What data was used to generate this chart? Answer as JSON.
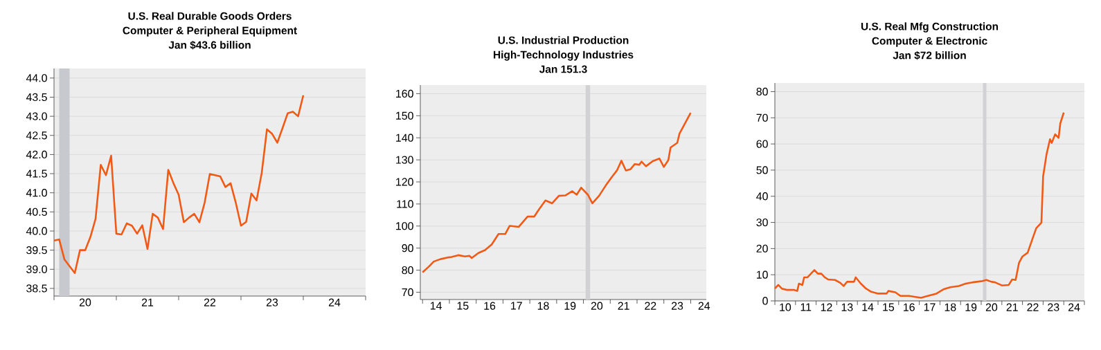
{
  "chart_data": [
    {
      "type": "line",
      "title": "U.S. Real Durable Goods Orders",
      "subtitle": "Computer & Peripheral Equipment",
      "annotations": [
        "Jan $43.6 billion"
      ],
      "color": "#f05a16",
      "grid": "y",
      "x": [
        "2020-01",
        "2020-02",
        "2020-03",
        "2020-04",
        "2020-05",
        "2020-06",
        "2020-07",
        "2020-08",
        "2020-09",
        "2020-10",
        "2020-11",
        "2020-12",
        "2021-01",
        "2021-02",
        "2021-03",
        "2021-04",
        "2021-05",
        "2021-06",
        "2021-07",
        "2021-08",
        "2021-09",
        "2021-10",
        "2021-11",
        "2021-12",
        "2022-01",
        "2022-02",
        "2022-03",
        "2022-04",
        "2022-05",
        "2022-06",
        "2022-07",
        "2022-08",
        "2022-09",
        "2022-10",
        "2022-11",
        "2022-12",
        "2023-01",
        "2023-02",
        "2023-03",
        "2023-04",
        "2023-05",
        "2023-06",
        "2023-07",
        "2023-08",
        "2023-09",
        "2023-10",
        "2023-11",
        "2023-12",
        "2024-01"
      ],
      "values": [
        39.75,
        39.78,
        39.26,
        39.08,
        38.9,
        39.5,
        39.5,
        39.84,
        40.32,
        41.73,
        41.46,
        41.97,
        39.93,
        39.91,
        40.2,
        40.14,
        39.93,
        40.15,
        39.53,
        40.45,
        40.35,
        40.05,
        41.6,
        41.25,
        40.95,
        40.23,
        40.35,
        40.45,
        40.23,
        40.74,
        41.49,
        41.46,
        41.43,
        41.15,
        41.25,
        40.74,
        40.14,
        40.24,
        40.98,
        40.8,
        41.52,
        42.66,
        42.54,
        42.31,
        42.69,
        43.08,
        43.12,
        43.0,
        43.55
      ],
      "xlim": [
        "2020-01",
        "2025-01"
      ],
      "ylim": [
        38.3,
        44.25
      ],
      "xticks": [
        {
          "value": "2020-01",
          "label": null
        },
        {
          "value": "2020-07",
          "label": "20"
        },
        {
          "value": "2021-01",
          "label": null
        },
        {
          "value": "2021-07",
          "label": "21"
        },
        {
          "value": "2022-01",
          "label": null
        },
        {
          "value": "2022-07",
          "label": "22"
        },
        {
          "value": "2023-01",
          "label": null
        },
        {
          "value": "2023-07",
          "label": "23"
        },
        {
          "value": "2024-01",
          "label": null
        },
        {
          "value": "2024-07",
          "label": "24"
        },
        {
          "value": "2025-01",
          "label": null
        }
      ],
      "yticks": [
        {
          "value": 38.5,
          "label": "38.5"
        },
        {
          "value": 39,
          "label": "39.0"
        },
        {
          "value": 39.5,
          "label": "39.5"
        },
        {
          "value": 40,
          "label": "40.0"
        },
        {
          "value": 40.5,
          "label": "40.5"
        },
        {
          "value": 41,
          "label": "41.0"
        },
        {
          "value": 41.5,
          "label": "41.5"
        },
        {
          "value": 42,
          "label": "42.0"
        },
        {
          "value": 42.5,
          "label": "42.5"
        },
        {
          "value": 43,
          "label": "43.0"
        },
        {
          "value": 43.5,
          "label": "43.5"
        },
        {
          "value": 44,
          "label": "44.0"
        }
      ],
      "bands": [
        {
          "axis": "x",
          "from": "2020-02",
          "to": "2020-04",
          "color": "#c8c9cf"
        }
      ]
    },
    {
      "type": "line",
      "title": "U.S. Industrial Production",
      "subtitle": "High-Technology Industries",
      "annotations": [
        "Jan 151.3"
      ],
      "color": "#f05a16",
      "grid": "y",
      "x": [
        "2014-01",
        "2014-04",
        "2014-06",
        "2014-09",
        "2014-12",
        "2015-02",
        "2015-05",
        "2015-08",
        "2015-10",
        "2015-11",
        "2016-02",
        "2016-05",
        "2016-08",
        "2016-11",
        "2017-02",
        "2017-04",
        "2017-08",
        "2017-12",
        "2018-03",
        "2018-05",
        "2018-08",
        "2018-11",
        "2019-02",
        "2019-05",
        "2019-08",
        "2019-10",
        "2019-12",
        "2020-03",
        "2020-05",
        "2020-08",
        "2020-11",
        "2021-02",
        "2021-04",
        "2021-06",
        "2021-08",
        "2021-10",
        "2021-12",
        "2022-02",
        "2022-03",
        "2022-05",
        "2022-08",
        "2022-11",
        "2023-01",
        "2023-03",
        "2023-04",
        "2023-07",
        "2023-08",
        "2024-01"
      ],
      "values": [
        79.0,
        81.8,
        83.9,
        85.0,
        85.7,
        86.0,
        86.8,
        86.2,
        86.5,
        85.5,
        87.8,
        89.1,
        91.7,
        96.4,
        96.4,
        100.1,
        99.6,
        104.3,
        104.3,
        107.4,
        111.6,
        110.3,
        113.7,
        113.9,
        115.8,
        114.2,
        117.4,
        114.2,
        110.3,
        113.7,
        118.4,
        122.6,
        125.2,
        129.6,
        125.2,
        125.7,
        128.1,
        127.8,
        129.2,
        127.1,
        129.4,
        130.6,
        126.8,
        129.9,
        135.6,
        137.7,
        141.9,
        151.3
      ],
      "xlim": [
        "2013-12",
        "2024-08"
      ],
      "ylim": [
        66.7,
        163.9
      ],
      "xticks": [
        {
          "value": "2014-01",
          "label": null
        },
        {
          "value": "2014-07",
          "label": "14"
        },
        {
          "value": "2015-01",
          "label": null
        },
        {
          "value": "2015-07",
          "label": "15"
        },
        {
          "value": "2016-01",
          "label": null
        },
        {
          "value": "2016-07",
          "label": "16"
        },
        {
          "value": "2017-01",
          "label": null
        },
        {
          "value": "2017-07",
          "label": "17"
        },
        {
          "value": "2018-01",
          "label": null
        },
        {
          "value": "2018-07",
          "label": "18"
        },
        {
          "value": "2019-01",
          "label": null
        },
        {
          "value": "2019-07",
          "label": "19"
        },
        {
          "value": "2020-01",
          "label": null
        },
        {
          "value": "2020-07",
          "label": "20"
        },
        {
          "value": "2021-01",
          "label": null
        },
        {
          "value": "2021-07",
          "label": "21"
        },
        {
          "value": "2022-01",
          "label": null
        },
        {
          "value": "2022-07",
          "label": "22"
        },
        {
          "value": "2023-01",
          "label": null
        },
        {
          "value": "2023-07",
          "label": "23"
        },
        {
          "value": "2024-01",
          "label": null
        },
        {
          "value": "2024-07",
          "label": "24"
        }
      ],
      "yticks": [
        70,
        80,
        90,
        100,
        110,
        120,
        130,
        140,
        150,
        160
      ],
      "bands": [
        {
          "axis": "x",
          "from": "2020-02",
          "to": "2020-04",
          "color": "#d2d2d4"
        }
      ]
    },
    {
      "type": "line",
      "title": "U.S. Real Mfg Construction",
      "subtitle": "Computer & Electronic",
      "annotations": [
        "Jan $72 billion"
      ],
      "color": "#f05a16",
      "grid": "y",
      "x": [
        "2010-01",
        "2010-03",
        "2010-05",
        "2010-08",
        "2010-12",
        "2011-02",
        "2011-03",
        "2011-05",
        "2011-06",
        "2011-08",
        "2011-10",
        "2011-12",
        "2012-02",
        "2012-04",
        "2012-06",
        "2012-08",
        "2012-12",
        "2013-03",
        "2013-05",
        "2013-07",
        "2013-11",
        "2013-12",
        "2014-03",
        "2014-06",
        "2014-09",
        "2015-01",
        "2015-06",
        "2015-07",
        "2015-11",
        "2016-02",
        "2016-07",
        "2016-10",
        "2017-02",
        "2017-06",
        "2017-11",
        "2018-03",
        "2018-07",
        "2018-12",
        "2019-04",
        "2019-08",
        "2020-01",
        "2020-04",
        "2020-07",
        "2020-09",
        "2021-01",
        "2021-05",
        "2021-07",
        "2021-09",
        "2021-11",
        "2022-01",
        "2022-04",
        "2022-07",
        "2022-09",
        "2022-12",
        "2023-01",
        "2023-03",
        "2023-05",
        "2023-06",
        "2023-08",
        "2023-10",
        "2023-11",
        "2024-01"
      ],
      "values": [
        4.7,
        6.1,
        4.7,
        4.2,
        4.2,
        3.8,
        6.6,
        6.1,
        9.0,
        9.0,
        10.4,
        11.8,
        10.4,
        10.4,
        9.0,
        8.2,
        8.0,
        6.9,
        5.7,
        7.3,
        7.3,
        9.0,
        6.6,
        4.7,
        3.5,
        2.8,
        2.8,
        3.8,
        3.3,
        1.9,
        1.9,
        1.6,
        1.2,
        1.9,
        2.8,
        4.4,
        5.2,
        5.7,
        6.6,
        7.1,
        7.5,
        8.0,
        7.3,
        7.1,
        5.9,
        6.1,
        8.2,
        8.0,
        14.6,
        17.0,
        18.4,
        24.1,
        27.8,
        29.9,
        47.6,
        56.1,
        61.8,
        60.4,
        63.7,
        62.3,
        67.9,
        72
      ],
      "xlim": [
        "2010-01",
        "2025-01"
      ],
      "ylim": [
        0,
        83.3
      ],
      "xticks": [
        {
          "value": "2010-01",
          "label": null
        },
        {
          "value": "2010-07",
          "label": "10"
        },
        {
          "value": "2011-01",
          "label": null
        },
        {
          "value": "2011-07",
          "label": "11"
        },
        {
          "value": "2012-01",
          "label": null
        },
        {
          "value": "2012-07",
          "label": "12"
        },
        {
          "value": "2013-01",
          "label": null
        },
        {
          "value": "2013-07",
          "label": "13"
        },
        {
          "value": "2014-01",
          "label": null
        },
        {
          "value": "2014-07",
          "label": "14"
        },
        {
          "value": "2015-01",
          "label": null
        },
        {
          "value": "2015-07",
          "label": "15"
        },
        {
          "value": "2016-01",
          "label": null
        },
        {
          "value": "2016-07",
          "label": "16"
        },
        {
          "value": "2017-01",
          "label": null
        },
        {
          "value": "2017-07",
          "label": "17"
        },
        {
          "value": "2018-01",
          "label": null
        },
        {
          "value": "2018-07",
          "label": "18"
        },
        {
          "value": "2019-01",
          "label": null
        },
        {
          "value": "2019-07",
          "label": "19"
        },
        {
          "value": "2020-01",
          "label": null
        },
        {
          "value": "2020-07",
          "label": "20"
        },
        {
          "value": "2021-01",
          "label": null
        },
        {
          "value": "2021-07",
          "label": "21"
        },
        {
          "value": "2022-01",
          "label": null
        },
        {
          "value": "2022-07",
          "label": "22"
        },
        {
          "value": "2023-01",
          "label": null
        },
        {
          "value": "2023-07",
          "label": "23"
        },
        {
          "value": "2024-01",
          "label": null
        },
        {
          "value": "2024-07",
          "label": "24"
        },
        {
          "value": "2025-01",
          "label": null
        }
      ],
      "yticks": [
        0,
        10,
        20,
        30,
        40,
        50,
        60,
        70,
        80
      ],
      "bands": [
        {
          "axis": "x",
          "from": "2020-02",
          "to": "2020-04",
          "color": "#d2d2d4"
        }
      ]
    }
  ]
}
